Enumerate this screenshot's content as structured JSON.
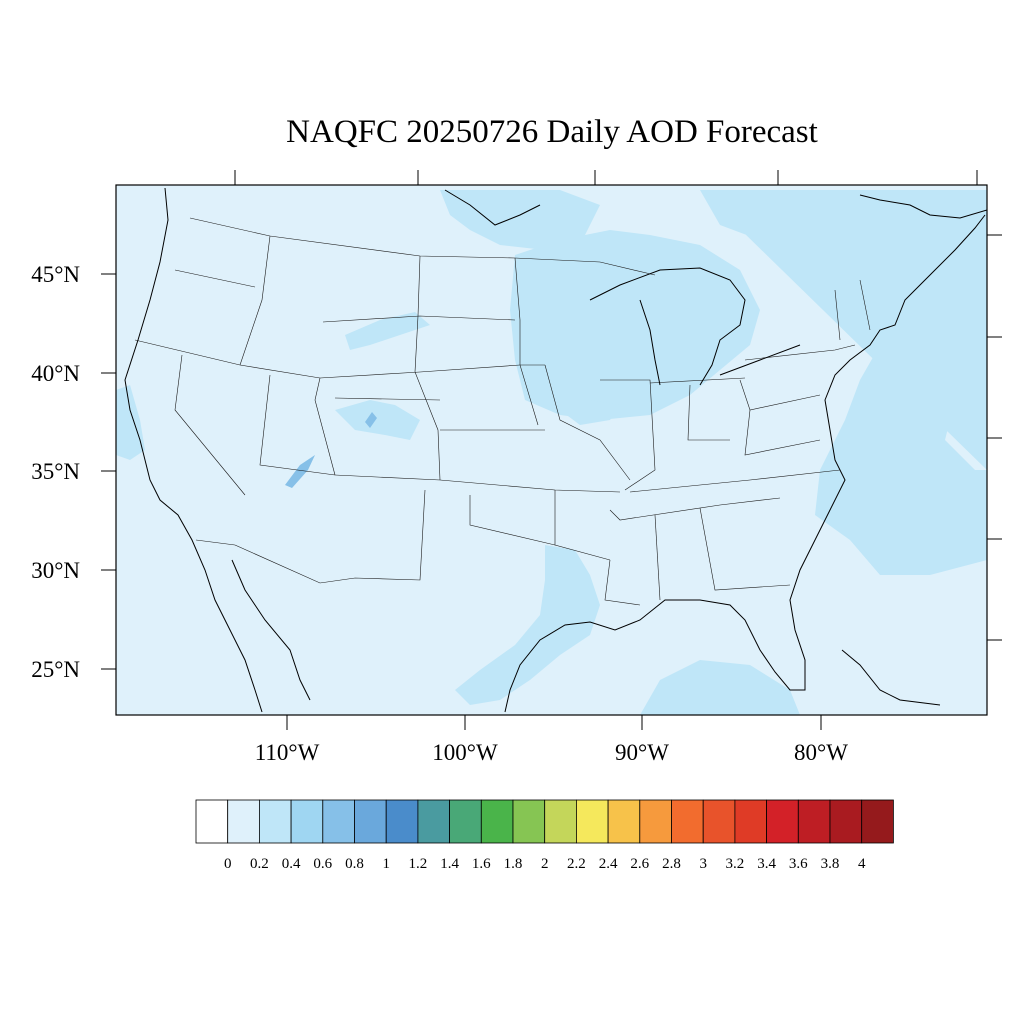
{
  "title": "NAQFC 20250726 Daily AOD Forecast",
  "map": {
    "projection": "Lambert conformal (CONUS)",
    "variable": "AOD",
    "background_level_color": "#dff1fb",
    "lat_labels": [
      "45°N",
      "40°N",
      "35°N",
      "30°N",
      "25°N"
    ],
    "lon_labels": [
      "110°W",
      "100°W",
      "90°W",
      "80°W"
    ],
    "regions_labeled": []
  },
  "colorbar": {
    "labels": [
      "0",
      "0.2",
      "0.4",
      "0.6",
      "0.8",
      "1",
      "1.2",
      "1.4",
      "1.6",
      "1.8",
      "2",
      "2.2",
      "2.4",
      "2.6",
      "2.8",
      "3",
      "3.2",
      "3.4",
      "3.6",
      "3.8",
      "4"
    ],
    "colors": [
      "#ffffff",
      "#dff1fb",
      "#bfe6f8",
      "#9fd6f2",
      "#86c0e8",
      "#6aa8dc",
      "#4a8ccb",
      "#4a9ba0",
      "#49a877",
      "#4ab44a",
      "#86c553",
      "#c4d65a",
      "#f5e85c",
      "#f7c24a",
      "#f69a3d",
      "#f26c2e",
      "#e8532b",
      "#df3b26",
      "#d32128",
      "#be1e24",
      "#a91b20",
      "#951a1c"
    ]
  }
}
